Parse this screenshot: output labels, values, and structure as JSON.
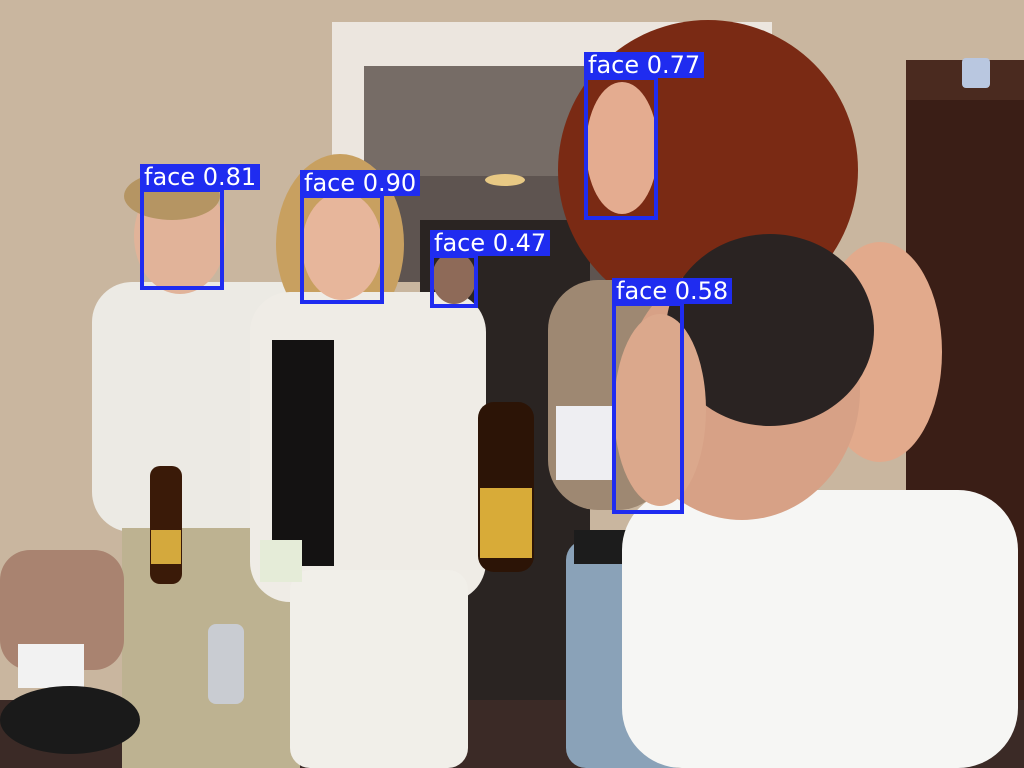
{
  "colors": {
    "box": "#1f2cf0",
    "label_text": "#ffffff"
  },
  "detections": [
    {
      "label": "face 0.81",
      "class": "face",
      "confidence": 0.81
    },
    {
      "label": "face 0.90",
      "class": "face",
      "confidence": 0.9
    },
    {
      "label": "face 0.47",
      "class": "face",
      "confidence": 0.47
    },
    {
      "label": "face 0.77",
      "class": "face",
      "confidence": 0.77
    },
    {
      "label": "face 0.58",
      "class": "face",
      "confidence": 0.58
    }
  ]
}
